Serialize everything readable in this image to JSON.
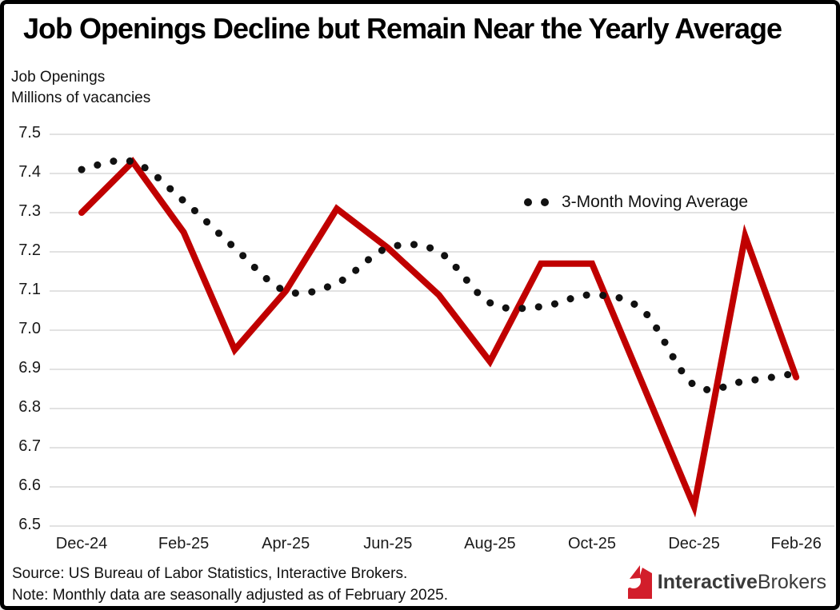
{
  "header": {
    "title": "Job Openings Decline but Remain Near the Yearly Average",
    "subtitle_line1": "Job Openings",
    "subtitle_line2": "Millions of vacancies"
  },
  "legend": {
    "label": "3-Month Moving Average"
  },
  "footer": {
    "source": "Source: US Bureau of Labor Statistics, Interactive Brokers.",
    "note": "Note: Monthly data are seasonally adjusted as of February 2025."
  },
  "logo": {
    "bold": "Interactive",
    "regular": "Brokers",
    "icon_color": "#d21e2b"
  },
  "colors": {
    "job_openings_line": "#c00000",
    "moving_average_dots": "#111111",
    "gridline": "#d9d9d9"
  },
  "chart_data": {
    "type": "line",
    "title": "Job Openings Decline but Remain Near the Yearly Average",
    "ylabel": "Job Openings, Millions of vacancies",
    "xlabel": "",
    "grid": "horizontal",
    "ylim": [
      6.5,
      7.5
    ],
    "y_tick_labels": [
      "7.5",
      "7.4",
      "7.3",
      "7.2",
      "7.1",
      "7.0",
      "6.9",
      "6.8",
      "6.7",
      "6.6",
      "6.5"
    ],
    "y_ticks": [
      7.5,
      7.4,
      7.3,
      7.2,
      7.1,
      7.0,
      6.9,
      6.8,
      6.7,
      6.6,
      6.5
    ],
    "categories": [
      "Dec-24",
      "Jan-25",
      "Feb-25",
      "Mar-25",
      "Apr-25",
      "May-25",
      "Jun-25",
      "Jul-25",
      "Aug-25",
      "Sep-25",
      "Oct-25",
      "Nov-25",
      "Dec-25",
      "Jan-26",
      "Feb-26"
    ],
    "x_tick_labels": [
      "Dec-24",
      "Feb-25",
      "Apr-25",
      "Jun-25",
      "Aug-25",
      "Oct-25",
      "Dec-25",
      "Feb-26"
    ],
    "x_tick_every": 2,
    "legend_position": "inside-top-right",
    "series": [
      {
        "name": "Job Openings",
        "style": "solid",
        "color": "#c00000",
        "values": [
          7.3,
          7.43,
          7.25,
          6.95,
          7.1,
          7.31,
          7.21,
          7.09,
          6.92,
          7.17,
          7.17,
          6.86,
          6.55,
          7.24,
          6.88
        ]
      },
      {
        "name": "3-Month Moving Average",
        "style": "dotted",
        "color": "#111111",
        "values": [
          7.41,
          7.43,
          7.33,
          7.21,
          7.1,
          7.12,
          7.21,
          7.2,
          7.07,
          7.06,
          7.09,
          7.05,
          6.86,
          6.87,
          6.89
        ]
      }
    ]
  }
}
